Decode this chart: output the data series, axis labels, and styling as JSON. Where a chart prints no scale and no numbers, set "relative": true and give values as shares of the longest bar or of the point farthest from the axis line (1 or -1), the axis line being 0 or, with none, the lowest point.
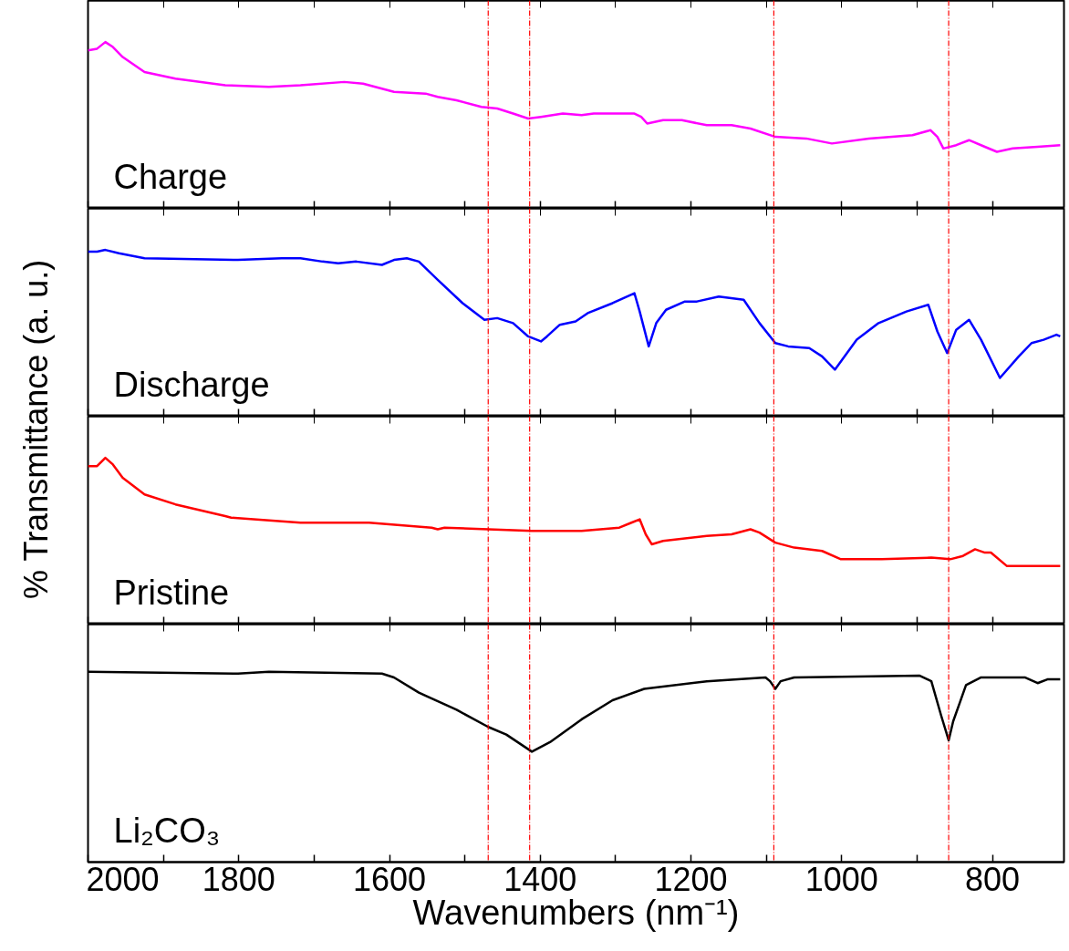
{
  "chart_data": [
    {
      "type": "line",
      "relative": true,
      "ylabel": "% Transmittance (a. u.)",
      "xlim": [
        2000,
        705
      ],
      "tick_labels": false,
      "line_style": "solid",
      "xticks": [
        2000,
        {
          "value": 1900,
          "label": null
        },
        1800,
        {
          "value": 1700,
          "label": null
        },
        1600,
        {
          "value": 1500,
          "label": null
        },
        1400,
        {
          "value": 1300,
          "label": null
        },
        1200,
        {
          "value": 1100,
          "label": null
        },
        1000,
        {
          "value": 900,
          "label": null
        },
        800
      ],
      "ref_lines": [
        {
          "axis": "x",
          "value": 1469,
          "color": "#ff0000",
          "line_style": "dashed"
        },
        {
          "axis": "x",
          "value": 1414,
          "color": "#ff0000",
          "line_style": "dashed"
        },
        {
          "axis": "x",
          "value": 1090,
          "color": "#ff0000",
          "line_style": "dashed"
        },
        {
          "axis": "x",
          "value": 858,
          "color": "#ff0000",
          "line_style": "dashed"
        }
      ],
      "series": [
        {
          "name": "Charge",
          "color": "#ff00ff",
          "x": [
            2000,
            1988,
            1977,
            1967,
            1954,
            1925,
            1884,
            1818,
            1760,
            1718,
            1660,
            1635,
            1594,
            1552,
            1536,
            1511,
            1478,
            1457,
            1436,
            1416,
            1399,
            1370,
            1345,
            1329,
            1275,
            1266,
            1258,
            1237,
            1212,
            1179,
            1146,
            1121,
            1088,
            1047,
            1013,
            964,
            906,
            882,
            873,
            865,
            848,
            831,
            810,
            794,
            773,
            740,
            710
          ],
          "values": [
            0.95,
            0.96,
            1.0,
            0.97,
            0.91,
            0.82,
            0.78,
            0.74,
            0.73,
            0.74,
            0.76,
            0.75,
            0.7,
            0.69,
            0.67,
            0.65,
            0.61,
            0.6,
            0.57,
            0.54,
            0.55,
            0.57,
            0.56,
            0.57,
            0.57,
            0.55,
            0.51,
            0.53,
            0.53,
            0.5,
            0.5,
            0.48,
            0.43,
            0.42,
            0.39,
            0.42,
            0.44,
            0.47,
            0.43,
            0.36,
            0.38,
            0.41,
            0.37,
            0.34,
            0.36,
            0.37,
            0.38
          ]
        }
      ]
    },
    {
      "type": "line",
      "relative": true,
      "xlim": [
        2000,
        705
      ],
      "tick_labels": false,
      "line_style": "solid",
      "xticks": [
        2000,
        {
          "value": 1900,
          "label": null
        },
        1800,
        {
          "value": 1700,
          "label": null
        },
        1600,
        {
          "value": 1500,
          "label": null
        },
        1400,
        {
          "value": 1300,
          "label": null
        },
        1200,
        {
          "value": 1100,
          "label": null
        },
        1000,
        {
          "value": 900,
          "label": null
        },
        800
      ],
      "ref_lines": [
        {
          "axis": "x",
          "value": 1469,
          "color": "#ff0000",
          "line_style": "dashed"
        },
        {
          "axis": "x",
          "value": 1414,
          "color": "#ff0000",
          "line_style": "dashed"
        },
        {
          "axis": "x",
          "value": 1090,
          "color": "#ff0000",
          "line_style": "dashed"
        },
        {
          "axis": "x",
          "value": 858,
          "color": "#ff0000",
          "line_style": "dashed"
        }
      ],
      "series": [
        {
          "name": "Discharge",
          "color": "#0000ff",
          "x": [
            2000,
            1988,
            1977,
            1959,
            1925,
            1801,
            1743,
            1718,
            1689,
            1668,
            1644,
            1610,
            1594,
            1577,
            1561,
            1536,
            1503,
            1474,
            1457,
            1436,
            1416,
            1399,
            1391,
            1374,
            1353,
            1337,
            1304,
            1275,
            1268,
            1256,
            1246,
            1233,
            1208,
            1192,
            1163,
            1130,
            1109,
            1088,
            1071,
            1043,
            1026,
            1009,
            980,
            951,
            914,
            885,
            873,
            860,
            848,
            831,
            815,
            790,
            765,
            748,
            732,
            715,
            710
          ],
          "values": [
            0.99,
            0.99,
            1.0,
            0.98,
            0.95,
            0.94,
            0.95,
            0.95,
            0.93,
            0.92,
            0.93,
            0.91,
            0.94,
            0.95,
            0.93,
            0.82,
            0.68,
            0.58,
            0.59,
            0.56,
            0.48,
            0.45,
            0.48,
            0.55,
            0.57,
            0.62,
            0.68,
            0.74,
            0.63,
            0.42,
            0.56,
            0.64,
            0.69,
            0.69,
            0.72,
            0.7,
            0.56,
            0.44,
            0.42,
            0.41,
            0.36,
            0.28,
            0.46,
            0.56,
            0.63,
            0.67,
            0.51,
            0.38,
            0.52,
            0.58,
            0.46,
            0.23,
            0.36,
            0.44,
            0.46,
            0.49,
            0.48
          ]
        }
      ]
    },
    {
      "type": "line",
      "relative": true,
      "xlim": [
        2000,
        705
      ],
      "tick_labels": false,
      "line_style": "solid",
      "xticks": [
        2000,
        {
          "value": 1900,
          "label": null
        },
        1800,
        {
          "value": 1700,
          "label": null
        },
        1600,
        {
          "value": 1500,
          "label": null
        },
        1400,
        {
          "value": 1300,
          "label": null
        },
        1200,
        {
          "value": 1100,
          "label": null
        },
        1000,
        {
          "value": 900,
          "label": null
        },
        800
      ],
      "ref_lines": [
        {
          "axis": "x",
          "value": 1469,
          "color": "#ff0000",
          "line_style": "dashed"
        },
        {
          "axis": "x",
          "value": 1414,
          "color": "#ff0000",
          "line_style": "dashed"
        },
        {
          "axis": "x",
          "value": 1090,
          "color": "#ff0000",
          "line_style": "dashed"
        },
        {
          "axis": "x",
          "value": 858,
          "color": "#ff0000",
          "line_style": "dashed"
        }
      ],
      "series": [
        {
          "name": "Pristine",
          "color": "#ff0000",
          "x": [
            2000,
            1988,
            1977,
            1967,
            1954,
            1925,
            1884,
            1818,
            1810,
            1718,
            1627,
            1544,
            1536,
            1527,
            1469,
            1411,
            1395,
            1345,
            1295,
            1279,
            1268,
            1260,
            1252,
            1237,
            1179,
            1146,
            1121,
            1109,
            1088,
            1063,
            1026,
            1001,
            947,
            881,
            856,
            839,
            823,
            810,
            802,
            781,
            748,
            710
          ],
          "values": [
            0.95,
            0.95,
            1.0,
            0.96,
            0.88,
            0.78,
            0.72,
            0.65,
            0.64,
            0.61,
            0.61,
            0.58,
            0.57,
            0.58,
            0.57,
            0.56,
            0.56,
            0.56,
            0.58,
            0.61,
            0.63,
            0.54,
            0.48,
            0.5,
            0.53,
            0.54,
            0.57,
            0.55,
            0.49,
            0.46,
            0.44,
            0.39,
            0.39,
            0.4,
            0.39,
            0.41,
            0.45,
            0.43,
            0.43,
            0.35,
            0.35,
            0.35
          ]
        }
      ]
    },
    {
      "type": "line",
      "relative": true,
      "xlabel": "Wavenumbers (nm⁻¹)",
      "xlim": [
        2000,
        705
      ],
      "tick_labels": "x",
      "line_style": "solid",
      "xticks": [
        2000,
        {
          "value": 1900,
          "label": null
        },
        1800,
        {
          "value": 1700,
          "label": null
        },
        1600,
        {
          "value": 1500,
          "label": null
        },
        1400,
        {
          "value": 1300,
          "label": null
        },
        1200,
        {
          "value": 1100,
          "label": null
        },
        1000,
        {
          "value": 900,
          "label": null
        },
        800
      ],
      "ref_lines": [
        {
          "axis": "x",
          "value": 1469,
          "color": "#ff0000",
          "line_style": "dashed"
        },
        {
          "axis": "x",
          "value": 1414,
          "color": "#ff0000",
          "line_style": "dashed"
        },
        {
          "axis": "x",
          "value": 1090,
          "color": "#ff0000",
          "line_style": "dashed"
        },
        {
          "axis": "x",
          "value": 858,
          "color": "#ff0000",
          "line_style": "dashed"
        }
      ],
      "series": [
        {
          "name": "Li₂CO₃",
          "color": "#000000",
          "x": [
            2000,
            1801,
            1760,
            1610,
            1594,
            1561,
            1511,
            1469,
            1445,
            1411,
            1387,
            1345,
            1304,
            1262,
            1179,
            1101,
            1095,
            1088,
            1081,
            1063,
            897,
            881,
            868,
            858,
            852,
            843,
            835,
            815,
            757,
            740,
            727,
            710
          ],
          "values": [
            1.0,
            0.99,
            1.0,
            0.99,
            0.97,
            0.89,
            0.8,
            0.71,
            0.67,
            0.58,
            0.63,
            0.75,
            0.85,
            0.91,
            0.95,
            0.97,
            0.95,
            0.91,
            0.95,
            0.97,
            0.98,
            0.95,
            0.77,
            0.64,
            0.74,
            0.84,
            0.93,
            0.97,
            0.97,
            0.94,
            0.96,
            0.96
          ]
        }
      ]
    }
  ]
}
